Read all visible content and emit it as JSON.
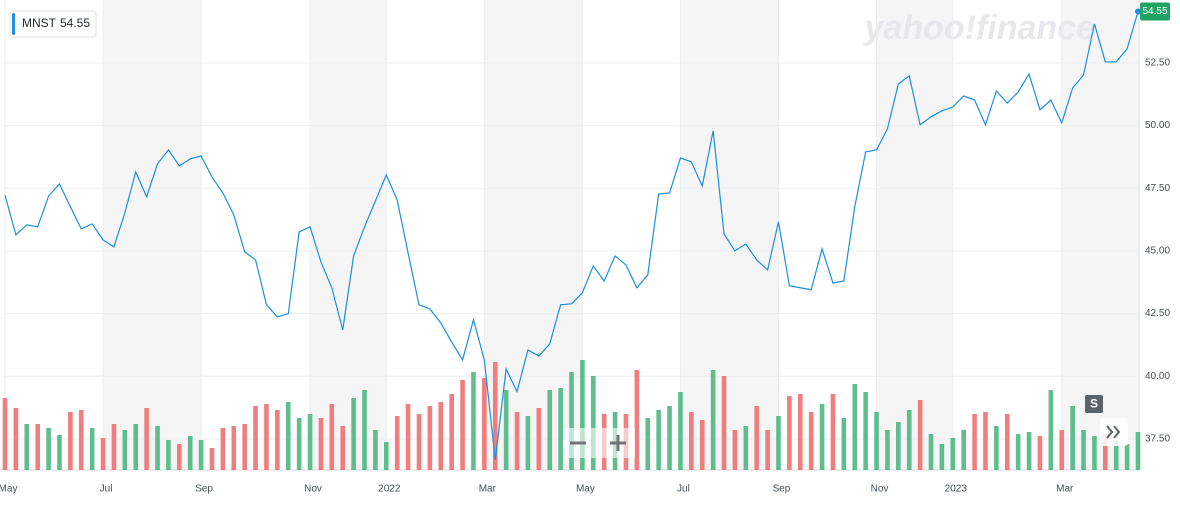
{
  "chart_data": {
    "type": "line",
    "symbol": "MNST",
    "watermark": "yahoo!finance",
    "controls": {
      "scale": "S"
    },
    "categories": [
      "May",
      null,
      null,
      null,
      null,
      null,
      null,
      null,
      null,
      "Jul",
      null,
      null,
      null,
      null,
      null,
      null,
      null,
      null,
      "Sep",
      null,
      null,
      null,
      null,
      null,
      null,
      null,
      null,
      null,
      "Nov",
      null,
      null,
      null,
      null,
      null,
      null,
      "2022",
      null,
      null,
      null,
      null,
      null,
      null,
      null,
      null,
      "Mar",
      null,
      null,
      null,
      null,
      null,
      null,
      null,
      null,
      "May",
      null,
      null,
      null,
      null,
      null,
      null,
      null,
      null,
      "Jul",
      null,
      null,
      null,
      null,
      null,
      null,
      null,
      null,
      "Sep",
      null,
      null,
      null,
      null,
      null,
      null,
      null,
      null,
      "Nov",
      null,
      null,
      null,
      null,
      null,
      null,
      "2023",
      null,
      null,
      null,
      null,
      null,
      null,
      null,
      null,
      null,
      "Mar",
      null,
      null,
      null,
      null,
      null,
      null,
      null
    ],
    "series": [
      {
        "name": "MNST",
        "color": "#1a8fe3",
        "values": [
          47.23,
          45.64,
          46.04,
          45.96,
          47.19,
          47.67,
          46.76,
          45.88,
          46.08,
          45.44,
          45.16,
          46.52,
          48.15,
          47.16,
          48.47,
          49.03,
          48.39,
          48.67,
          48.79,
          47.95,
          47.31,
          46.44,
          44.96,
          44.64,
          42.85,
          42.37,
          42.49,
          45.76,
          45.96,
          44.56,
          43.53,
          41.85,
          44.8,
          45.96,
          46.99,
          48.03,
          47.03,
          44.92,
          42.85,
          42.69,
          42.13,
          41.37,
          40.65,
          42.25,
          40.65,
          36.66,
          40.29,
          39.38,
          41.05,
          40.81,
          41.29,
          42.85,
          42.89,
          43.33,
          44.4,
          43.8,
          44.8,
          44.44,
          43.53,
          44.04,
          47.27,
          47.31,
          48.71,
          48.55,
          47.59,
          49.79,
          45.68,
          45.0,
          45.28,
          44.64,
          44.24,
          46.16,
          43.61,
          43.53,
          43.45,
          45.08,
          43.72,
          43.8,
          46.76,
          48.95,
          49.03,
          49.87,
          51.66,
          51.98,
          50.03,
          50.35,
          50.59,
          50.74,
          51.18,
          51.02,
          50.03,
          51.38,
          50.9,
          51.34,
          52.06,
          50.63,
          51.02,
          50.11,
          51.5,
          52.02,
          54.06,
          52.54,
          52.54,
          53.06,
          54.55
        ]
      }
    ],
    "volume": {
      "up_color": "#4cb782",
      "down_color": "#f07070",
      "values": [
        72,
        62,
        46,
        46,
        42,
        35,
        58,
        60,
        42,
        32,
        46,
        40,
        46,
        62,
        44,
        30,
        26,
        34,
        30,
        22,
        42,
        44,
        46,
        64,
        66,
        60,
        68,
        52,
        56,
        52,
        66,
        44,
        72,
        80,
        40,
        28,
        54,
        66,
        56,
        64,
        68,
        76,
        90,
        98,
        92,
        108,
        80,
        58,
        54,
        62,
        80,
        82,
        98,
        110,
        94,
        56,
        58,
        56,
        100,
        52,
        60,
        64,
        78,
        58,
        50,
        100,
        94,
        40,
        44,
        64,
        40,
        54,
        74,
        76,
        58,
        66,
        76,
        52,
        86,
        78,
        58,
        40,
        48,
        60,
        70,
        36,
        26,
        32,
        40,
        56,
        58,
        44,
        56,
        36,
        38,
        34,
        80,
        40,
        64,
        40,
        34,
        36,
        30,
        26,
        38
      ]
    },
    "ylim": [
      36.26,
      55.01
    ],
    "yticks": [
      {
        "value": 37.5,
        "label": "37.50"
      },
      {
        "value": 40,
        "label": "40.00"
      },
      {
        "value": 42.5,
        "label": "42.50"
      },
      {
        "value": 45,
        "label": "45.00"
      },
      {
        "value": 47.5,
        "label": "47.50"
      },
      {
        "value": 50,
        "label": "50.00"
      },
      {
        "value": 52.5,
        "label": "52.50"
      }
    ],
    "grid": true,
    "last_label_color": "#21a366"
  }
}
